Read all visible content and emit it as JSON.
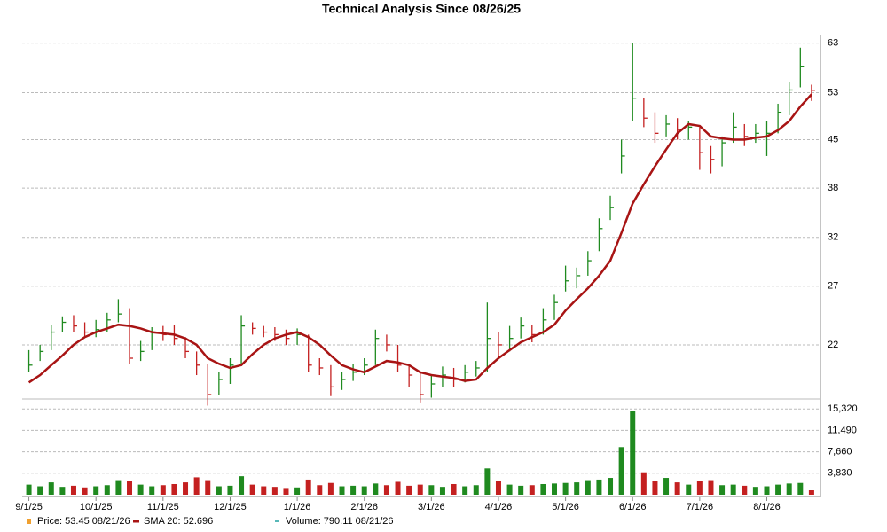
{
  "chart_data": {
    "type": "ohlc",
    "title": "Technical Analysis Since 08/26/25",
    "log_scale": true,
    "grid": true,
    "xlim": [
      -0.6,
      70.8
    ],
    "xticks": [
      {
        "value": 0,
        "label": "9/1/25"
      },
      {
        "value": 6,
        "label": "10/1/25"
      },
      {
        "value": 12,
        "label": "11/1/25"
      },
      {
        "value": 18,
        "label": "12/1/25"
      },
      {
        "value": 24,
        "label": "1/1/26"
      },
      {
        "value": 30,
        "label": "2/1/26"
      },
      {
        "value": 36,
        "label": "3/1/26"
      },
      {
        "value": 42,
        "label": "4/1/26"
      },
      {
        "value": 48,
        "label": "5/1/26"
      },
      {
        "value": 54,
        "label": "6/1/26"
      },
      {
        "value": 60,
        "label": "7/1/26"
      },
      {
        "value": 66,
        "label": "8/1/26"
      }
    ],
    "ylim": [
      18.5,
      64.7
    ],
    "yticks": [
      22,
      27,
      32,
      38,
      45,
      53,
      63
    ],
    "up_color": "#1f8a1f",
    "down_color": "#c42020",
    "high": [
      21.6,
      22.0,
      23.6,
      24.3,
      24.4,
      23.8,
      24.0,
      24.6,
      25.8,
      25.0,
      22.3,
      23.4,
      23.5,
      23.6,
      22.6,
      21.5,
      20.6,
      20.0,
      21.0,
      24.4,
      23.8,
      23.5,
      23.4,
      23.2,
      23.3,
      22.8,
      21.0,
      20.5,
      20.0,
      20.6,
      21.0,
      23.2,
      22.8,
      22.0,
      20.6,
      20.0,
      19.8,
      20.4,
      20.3,
      20.5,
      20.8,
      25.5,
      23.0,
      23.5,
      24.2,
      23.6,
      25.0,
      26.2,
      29.0,
      28.8,
      30.5,
      34.2,
      37.0,
      45.0,
      63.0,
      52.0,
      49.5,
      49.0,
      48.5,
      48.0,
      47.0,
      44.0,
      45.5,
      49.5,
      47.5,
      47.5,
      48.0,
      51.0,
      55.0,
      62.0,
      54.5
    ],
    "low": [
      20.0,
      20.8,
      21.6,
      23.0,
      23.0,
      22.6,
      22.6,
      23.0,
      23.8,
      20.6,
      20.8,
      21.6,
      22.3,
      22.0,
      21.0,
      19.8,
      17.8,
      18.5,
      19.2,
      20.5,
      22.8,
      22.6,
      22.3,
      22.0,
      22.0,
      20.0,
      19.8,
      18.4,
      18.8,
      19.4,
      19.8,
      20.5,
      21.5,
      20.0,
      19.0,
      18.0,
      18.3,
      19.0,
      19.0,
      19.3,
      19.7,
      20.0,
      21.0,
      21.5,
      22.5,
      22.2,
      22.8,
      24.0,
      26.5,
      26.8,
      28.0,
      30.5,
      34.0,
      40.0,
      48.0,
      47.0,
      44.5,
      45.5,
      45.0,
      45.0,
      40.5,
      40.0,
      41.0,
      44.5,
      44.0,
      44.5,
      42.5,
      46.0,
      49.0,
      54.0,
      51.5
    ],
    "close": [
      20.5,
      21.5,
      23.0,
      23.8,
      23.5,
      23.0,
      23.2,
      24.0,
      24.5,
      21.0,
      21.5,
      23.0,
      22.8,
      22.5,
      21.5,
      20.5,
      18.5,
      19.5,
      20.5,
      23.5,
      23.3,
      23.0,
      22.8,
      22.5,
      22.8,
      20.5,
      20.3,
      19.0,
      19.5,
      20.0,
      20.5,
      22.5,
      22.0,
      20.5,
      19.8,
      18.5,
      19.2,
      19.8,
      19.5,
      20.0,
      20.3,
      22.5,
      22.0,
      22.5,
      23.5,
      22.8,
      24.0,
      25.5,
      27.5,
      28.0,
      29.5,
      33.0,
      35.5,
      42.5,
      52.0,
      48.5,
      46.0,
      47.5,
      46.5,
      47.0,
      43.0,
      42.0,
      44.5,
      47.0,
      45.5,
      46.0,
      46.0,
      49.5,
      53.5,
      58.0,
      53.45
    ],
    "sma": {
      "name": "SMA 20",
      "color": "#a81414",
      "values": [
        19.3,
        19.8,
        20.5,
        21.2,
        22.0,
        22.6,
        23.0,
        23.3,
        23.6,
        23.5,
        23.3,
        23.0,
        22.9,
        22.8,
        22.5,
        22.0,
        21.0,
        20.6,
        20.3,
        20.5,
        21.3,
        22.0,
        22.5,
        22.8,
        23.0,
        22.6,
        22.0,
        21.2,
        20.5,
        20.2,
        20.0,
        20.4,
        20.8,
        20.7,
        20.5,
        20.0,
        19.8,
        19.7,
        19.6,
        19.4,
        19.5,
        20.3,
        21.0,
        21.6,
        22.2,
        22.6,
        23.0,
        23.6,
        24.8,
        25.8,
        26.8,
        28.0,
        29.5,
        32.5,
        36.0,
        38.5,
        41.0,
        43.5,
        46.0,
        47.5,
        47.2,
        45.5,
        45.2,
        45.0,
        45.0,
        45.3,
        45.5,
        46.5,
        48.0,
        50.5,
        52.696
      ]
    },
    "volume": {
      "ylim": [
        0,
        16300
      ],
      "yticks": [
        {
          "value": 3830,
          "label": "3,830"
        },
        {
          "value": 7660,
          "label": "7,660"
        },
        {
          "value": 11490,
          "label": "11,490"
        },
        {
          "value": 15320,
          "label": "15,320"
        }
      ],
      "values": [
        1800,
        1500,
        2200,
        1400,
        1600,
        1300,
        1500,
        1700,
        2600,
        2400,
        1800,
        1500,
        1700,
        1900,
        2200,
        3100,
        2600,
        1500,
        1600,
        3300,
        1800,
        1500,
        1400,
        1200,
        1300,
        2700,
        1700,
        2100,
        1500,
        1600,
        1500,
        2000,
        1700,
        2300,
        1600,
        1800,
        1700,
        1400,
        1900,
        1500,
        1700,
        4700,
        2500,
        1800,
        1600,
        1700,
        1900,
        2000,
        2100,
        2200,
        2600,
        2700,
        3000,
        8500,
        15000,
        4000,
        2500,
        3000,
        2200,
        1800,
        2500,
        2600,
        1700,
        1800,
        1600,
        1400,
        1500,
        1800,
        2000,
        2100,
        790.11
      ]
    },
    "legend": [
      {
        "label": "Price: 53.45  08/21/26",
        "color": "#f0a030"
      },
      {
        "label": "SMA 20: 52.696",
        "color": "#a81414"
      },
      {
        "label": "Volume: 790.11  08/21/26",
        "color": "#20a0a0"
      }
    ]
  }
}
